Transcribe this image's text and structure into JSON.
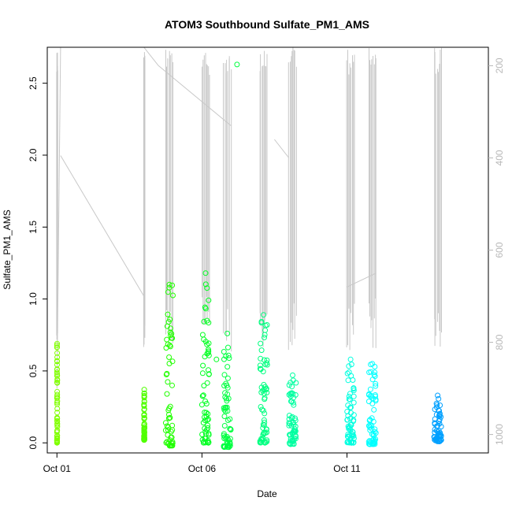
{
  "chart_data": {
    "type": "scatter",
    "title": "ATOM3 Southbound Sulfate_PM1_AMS",
    "xlabel": "Date",
    "ylabel": "Sulfate_PM1_AMS",
    "x_ticks": [
      "Oct 01",
      "Oct 06",
      "Oct 11"
    ],
    "xlim": [
      "2017-09-30T16:00",
      "2017-10-15T21:00"
    ],
    "ylim": [
      -0.07,
      2.75
    ],
    "y_ticks": [
      0.0,
      0.5,
      1.0,
      1.5,
      2.0,
      2.5
    ],
    "y2_label": "",
    "y2_ticks": [
      200,
      400,
      600,
      800,
      1000
    ],
    "y2lim": [
      1040,
      160
    ],
    "y2_reversed": true,
    "grid": false,
    "legend": "none",
    "colors": {
      "points": [
        "#80ff00",
        "#00ff30",
        "#00ffa0",
        "#00ffff",
        "#0090ff"
      ],
      "altitude_line": "#c8c8c8",
      "axis": "#000000",
      "right_axis": "#b8b8b8"
    },
    "flights": [
      {
        "start": "2017-10-01T00:00",
        "end": "2017-10-01T00:20",
        "ymax": 0.69,
        "ymin": 0.0,
        "color": "#80ff00"
      },
      {
        "start": "2017-10-04T00:00",
        "end": "2017-10-04T00:30",
        "ymax": 0.37,
        "ymin": 0.02,
        "color": "#50ff00"
      },
      {
        "start": "2017-10-04T18:00",
        "end": "2017-10-05T00:00",
        "ymax": 1.1,
        "ymin": -0.02,
        "color": "#20ff00"
      },
      {
        "start": "2017-10-06T00:00",
        "end": "2017-10-06T06:00",
        "ymax": 1.18,
        "ymin": 0.0,
        "color": "#00ff20"
      },
      {
        "start": "2017-10-06T18:00",
        "end": "2017-10-07T00:00",
        "ymax": 0.76,
        "ymin": -0.03,
        "color": "#00ff40"
      },
      {
        "start": "2017-10-08T00:00",
        "end": "2017-10-08T06:00",
        "ymax": 0.89,
        "ymin": 0.0,
        "color": "#00ff80"
      },
      {
        "start": "2017-10-09T00:00",
        "end": "2017-10-09T06:00",
        "ymax": 0.47,
        "ymin": -0.01,
        "color": "#00ffa0"
      },
      {
        "start": "2017-10-11T00:00",
        "end": "2017-10-11T06:00",
        "ymax": 0.58,
        "ymin": 0.0,
        "color": "#00ffe0"
      },
      {
        "start": "2017-10-11T18:00",
        "end": "2017-10-12T00:00",
        "ymax": 0.55,
        "ymin": -0.01,
        "color": "#00ffff"
      },
      {
        "start": "2017-10-14T00:00",
        "end": "2017-10-14T06:00",
        "ymax": 0.33,
        "ymin": 0.01,
        "color": "#00a0ff"
      }
    ],
    "outliers": [
      {
        "x": "2017-10-07T05:00",
        "y": 2.63,
        "color": "#00ff40"
      },
      {
        "x": "2017-10-06T12:00",
        "y": 0.58,
        "color": "#00ff20"
      }
    ],
    "altitude_traces": [
      {
        "x": [
          "2017-10-01T00:00",
          "2017-10-01T03:00"
        ],
        "alt": [
          900,
          160
        ]
      },
      {
        "x": [
          "2017-10-01T03:00",
          "2017-10-04T00:00"
        ],
        "alt": [
          395,
          700
        ]
      },
      {
        "x": [
          "2017-10-04T00:00",
          "2017-10-04T12:00"
        ],
        "alt": [
          160,
          200
        ]
      },
      {
        "x": [
          "2017-10-04T12:00",
          "2017-10-07T00:00"
        ],
        "alt": [
          200,
          330
        ]
      },
      {
        "x": [
          "2017-10-08T12:00",
          "2017-10-09T00:00"
        ],
        "alt": [
          360,
          400
        ]
      },
      {
        "x": [
          "2017-10-11T00:00",
          "2017-10-12T00:00"
        ],
        "alt": [
          680,
          650
        ]
      }
    ]
  }
}
